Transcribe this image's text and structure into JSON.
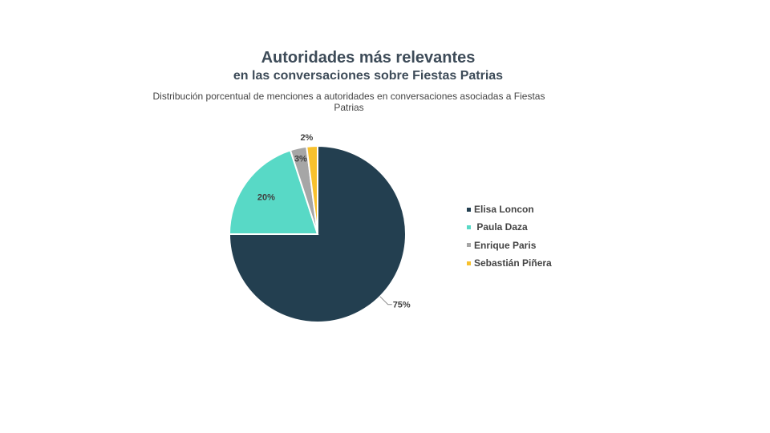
{
  "header": {
    "title": "Autoridades más relevantes",
    "subtitle": "en las conversaciones sobre Fiestas Patrias",
    "description": "Distribución porcentual de menciones a autoridades en conversaciones asociadas a Fiestas Patrias"
  },
  "chart_data": {
    "type": "pie",
    "legend_position": "right",
    "slices": [
      {
        "name": "Elisa Loncon",
        "label": "Elisa Loncon",
        "value": 75,
        "value_label": "75%",
        "color": "#233f50"
      },
      {
        "name": "Paula Daza",
        "label": " Paula Daza",
        "value": 20,
        "value_label": "20%",
        "color": "#58d9c6"
      },
      {
        "name": "Enrique Paris",
        "label": "Enrique Paris",
        "value": 3,
        "value_label": "3%",
        "color": "#a6a6a6"
      },
      {
        "name": "Sebastián Piñera",
        "label": "Sebastián Piñera",
        "value": 2,
        "value_label": "2%",
        "color": "#f8c12d"
      }
    ]
  }
}
